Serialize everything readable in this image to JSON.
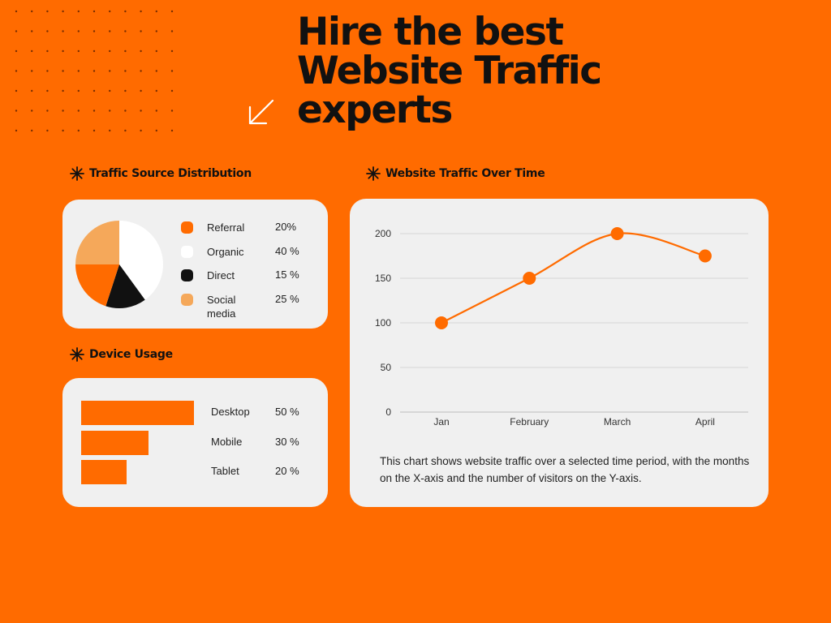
{
  "headline": {
    "line1": "Hire the best",
    "line2": "Website Traffic",
    "line3": "experts"
  },
  "colors": {
    "background": "#ff6b00",
    "card": "#f0f0f0",
    "accent": "#ff6b00",
    "light_orange": "#f5a85a",
    "black": "#111111",
    "white": "#ffffff"
  },
  "sections": {
    "traffic_source_title": "Traffic Source Distribution",
    "device_usage_title": "Device Usage",
    "traffic_over_time_title": "Website Traffic Over Time"
  },
  "icons": {
    "decor": "dot-grid",
    "arrow": "arrow-down-left-icon",
    "section_marker": "asterisk-icon"
  },
  "chart_data": [
    {
      "type": "pie",
      "title": "Traffic Source Distribution",
      "slices": [
        {
          "label": "Referral",
          "value": 20,
          "display": "20%",
          "color": "#ff6b00"
        },
        {
          "label": "Organic",
          "value": 40,
          "display": "40 %",
          "color": "#ffffff"
        },
        {
          "label": "Direct",
          "value": 15,
          "display": "15 %",
          "color": "#111111"
        },
        {
          "label": "Social media",
          "value": 25,
          "display": "25 %",
          "color": "#f5a85a"
        }
      ]
    },
    {
      "type": "bar",
      "orientation": "horizontal",
      "title": "Device Usage",
      "categories": [
        "Desktop",
        "Mobile",
        "Tablet"
      ],
      "values": [
        50,
        30,
        20
      ],
      "display": [
        "50 %",
        "30 %",
        "20 %"
      ],
      "color": "#ff6b00"
    },
    {
      "type": "line",
      "title": "Website Traffic Over Time",
      "categories": [
        "Jan",
        "February",
        "March",
        "April"
      ],
      "values": [
        100,
        150,
        200,
        175
      ],
      "ylim": [
        0,
        200
      ],
      "yticks": [
        0,
        50,
        100,
        150,
        200
      ],
      "grid": true,
      "color": "#ff6b00",
      "description": "This chart shows website traffic over a selected time period, with the months on the X-axis and the number of visitors on the Y-axis."
    }
  ]
}
